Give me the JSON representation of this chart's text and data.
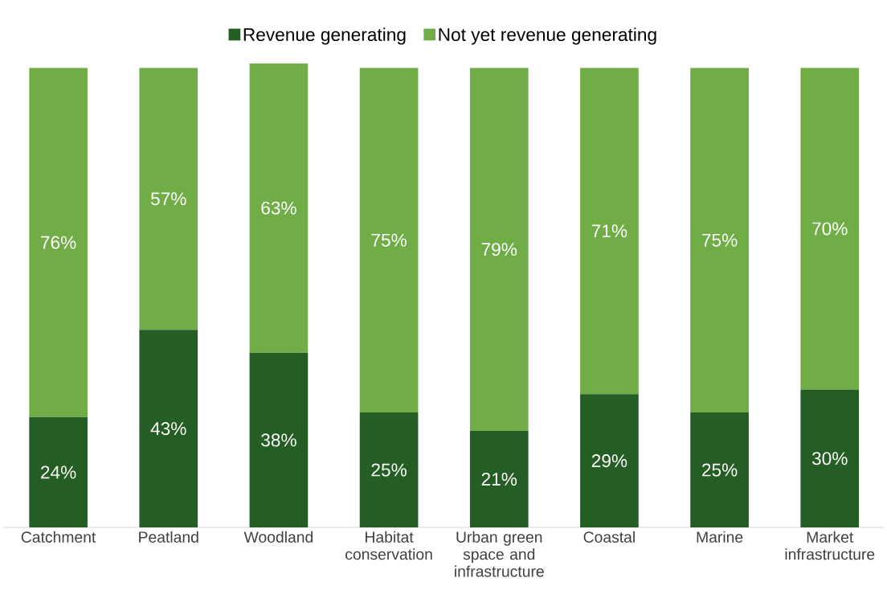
{
  "chart_data": {
    "type": "bar",
    "stacked": true,
    "legend": "top",
    "categories": [
      "Catchment",
      "Peatland",
      "Woodland",
      "Habitat conservation",
      "Urban green space and infrastructure",
      "Coastal",
      "Marine",
      "Market infrastructure"
    ],
    "series": [
      {
        "name": "Revenue generating",
        "color": "#255e24",
        "values": [
          24,
          43,
          38,
          25,
          21,
          29,
          25,
          30
        ],
        "value_labels": [
          "24%",
          "43%",
          "38%",
          "25%",
          "21%",
          "29%",
          "25%",
          "30%"
        ]
      },
      {
        "name": "Not yet revenue generating",
        "color": "#70ad47",
        "values": [
          76,
          57,
          63,
          75,
          79,
          71,
          75,
          70
        ],
        "value_labels": [
          "76%",
          "57%",
          "63%",
          "75%",
          "79%",
          "71%",
          "75%",
          "70%"
        ]
      }
    ]
  }
}
